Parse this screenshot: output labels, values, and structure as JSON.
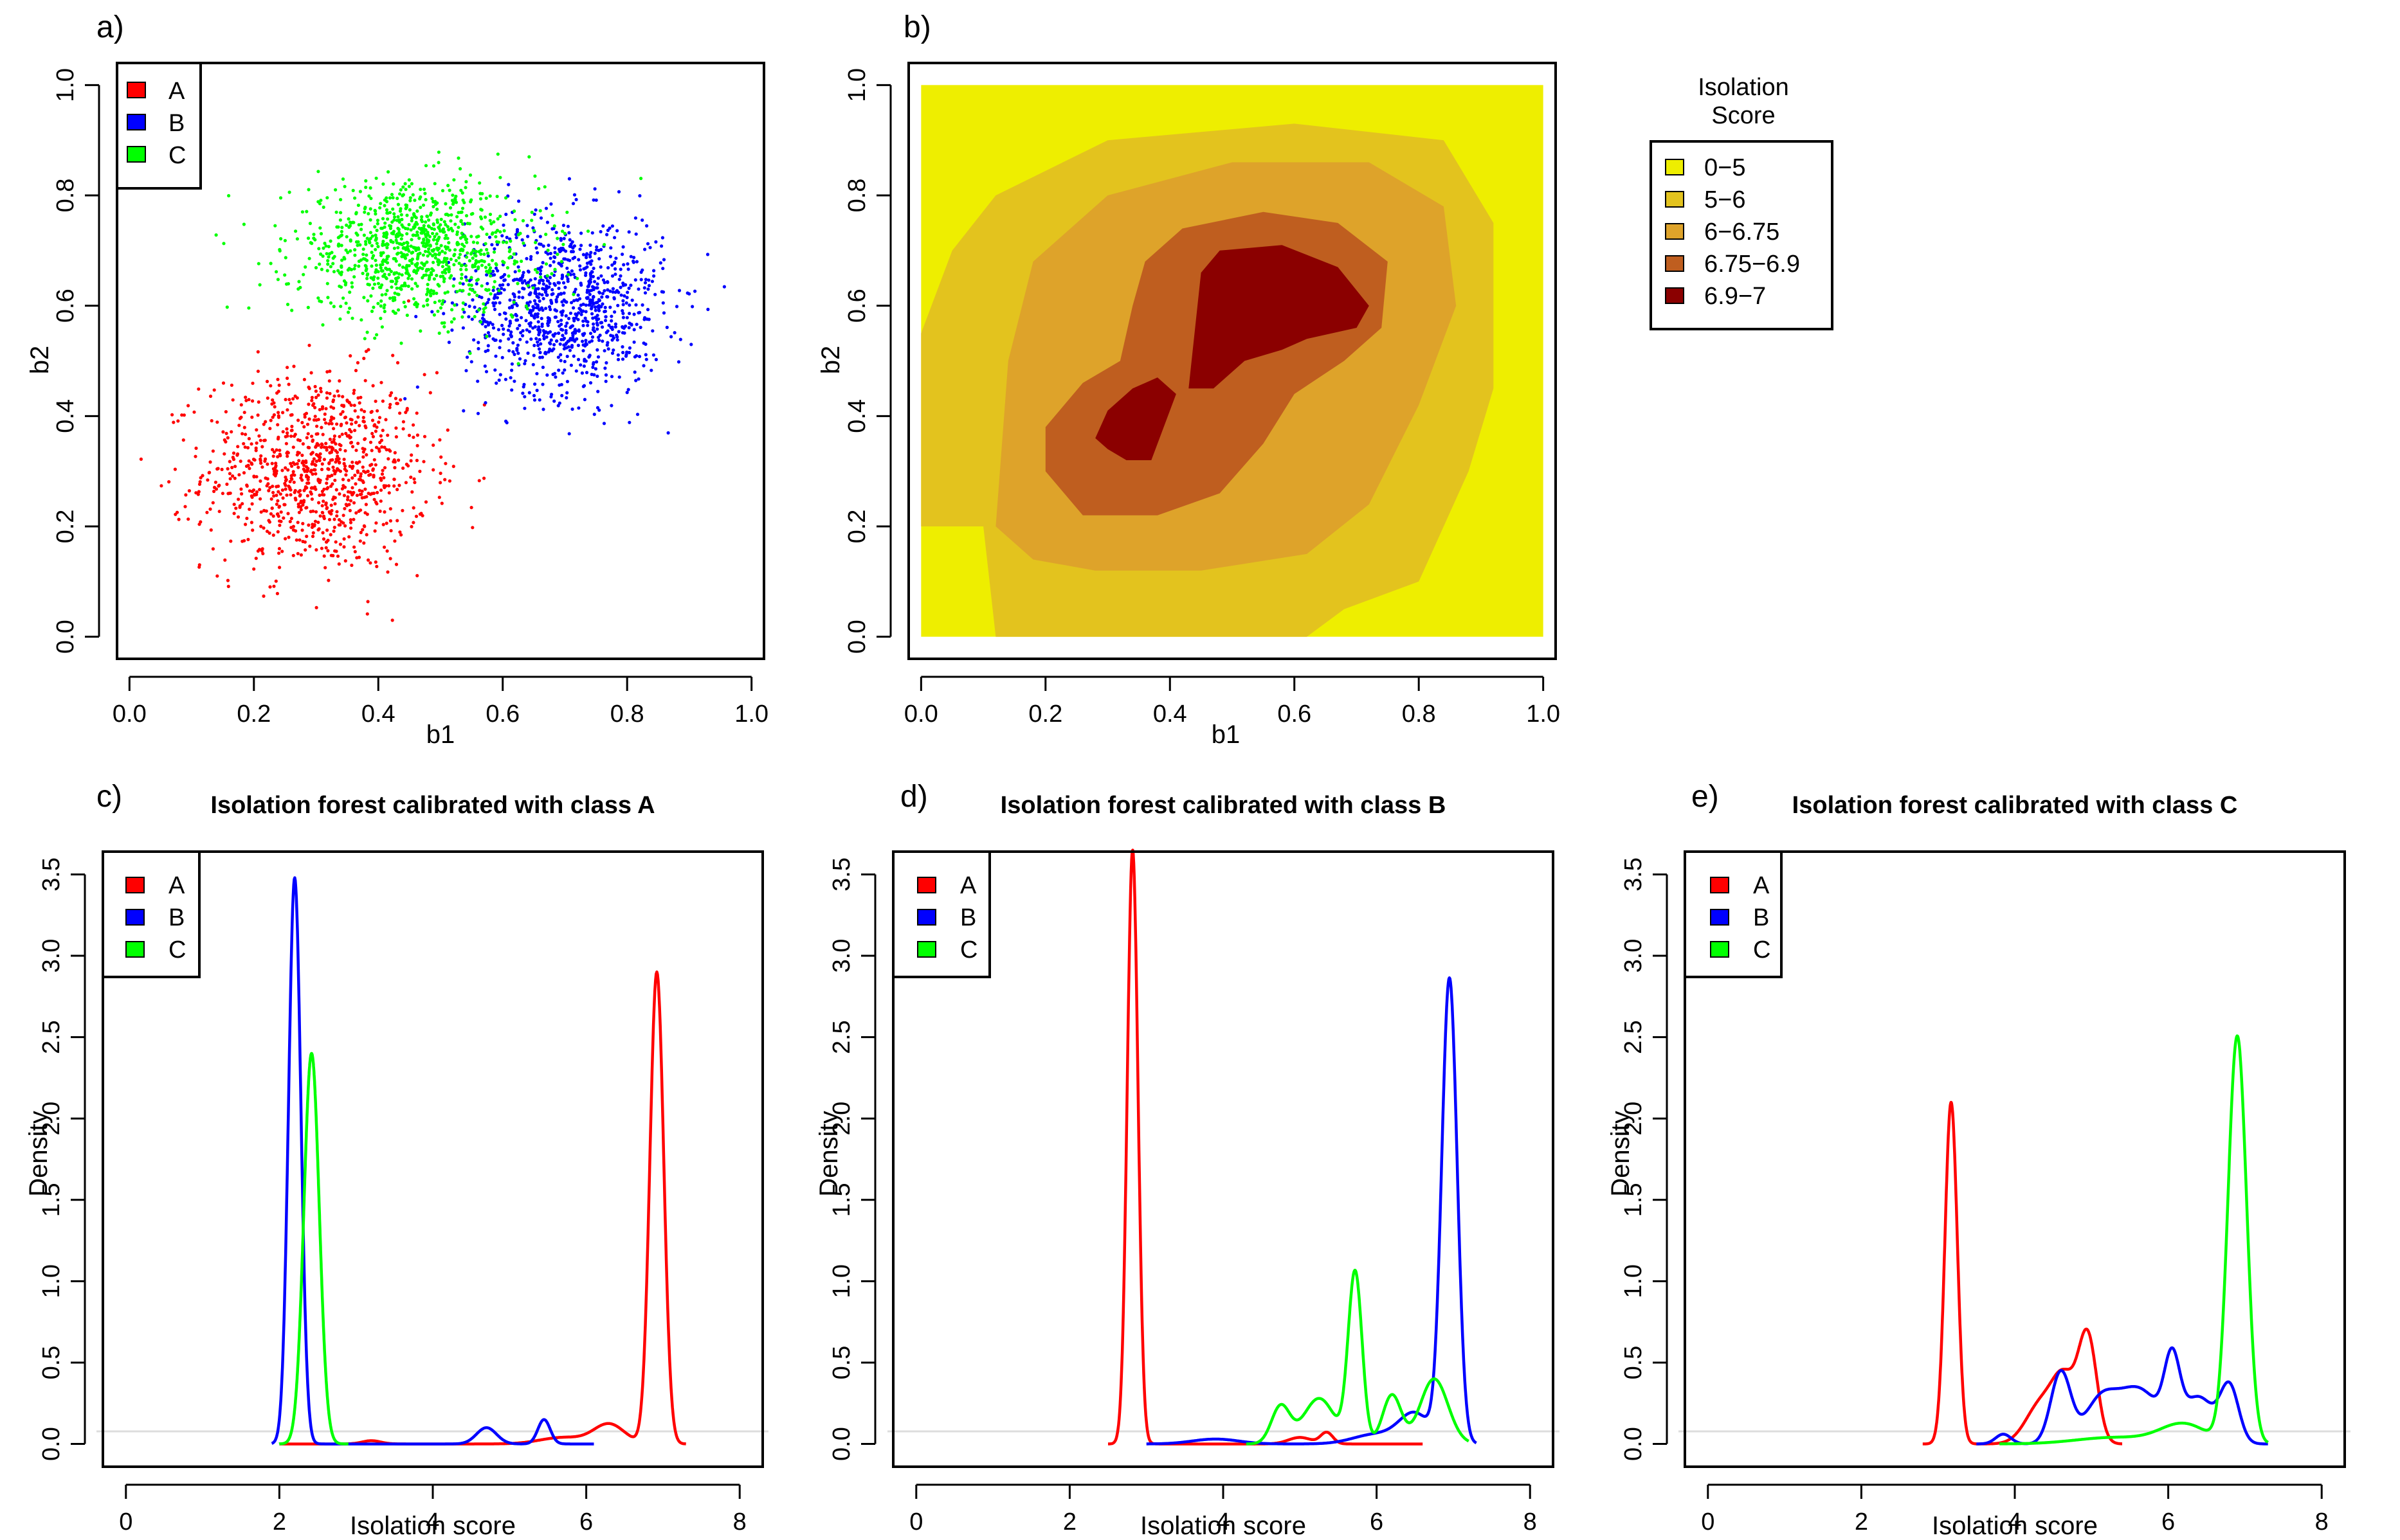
{
  "chart_data": [
    {
      "panel": "a)",
      "type": "scatter",
      "title": "",
      "xlabel": "b1",
      "ylabel": "b2",
      "xlim": [
        -0.02,
        1.02
      ],
      "ylim": [
        -0.04,
        1.04
      ],
      "xticks": [
        "0.0",
        "0.2",
        "0.4",
        "0.6",
        "0.8",
        "1.0"
      ],
      "yticks": [
        "0.0",
        "0.2",
        "0.4",
        "0.6",
        "0.8",
        "1.0"
      ],
      "legend": {
        "position": "top-left",
        "entries": [
          "A",
          "B",
          "C"
        ]
      },
      "series": [
        {
          "name": "A",
          "color": "#ff0000",
          "n": 1000,
          "center": [
            0.3,
            0.3
          ],
          "spread": [
            0.09,
            0.09
          ]
        },
        {
          "name": "B",
          "color": "#0000ff",
          "n": 1000,
          "center": [
            0.7,
            0.6
          ],
          "spread": [
            0.08,
            0.08
          ]
        },
        {
          "name": "C",
          "color": "#00ff00",
          "n": 1000,
          "center": [
            0.46,
            0.7
          ],
          "spread": [
            0.1,
            0.06
          ]
        }
      ]
    },
    {
      "panel": "b)",
      "type": "heatmap",
      "title": "",
      "xlabel": "b1",
      "ylabel": "b2",
      "xlim": [
        -0.02,
        1.02
      ],
      "ylim": [
        -0.04,
        1.04
      ],
      "xticks": [
        "0.0",
        "0.2",
        "0.4",
        "0.6",
        "0.8",
        "1.0"
      ],
      "yticks": [
        "0.0",
        "0.2",
        "0.4",
        "0.6",
        "0.8",
        "1.0"
      ],
      "legend": {
        "title_line1": "Isolation",
        "title_line2": "Score",
        "position": "right",
        "entries": [
          {
            "label": "0−5",
            "color": "#eeee00"
          },
          {
            "label": "5−6",
            "color": "#e3c31e"
          },
          {
            "label": "6−6.75",
            "color": "#dea32a"
          },
          {
            "label": "6.75−6.9",
            "color": "#bf5e1f"
          },
          {
            "label": "6.9−7",
            "color": "#8b0000"
          }
        ]
      },
      "regions": [
        {
          "class": "5−6",
          "polygon": [
            [
              0.0,
              0.55
            ],
            [
              0.05,
              0.7
            ],
            [
              0.12,
              0.8
            ],
            [
              0.3,
              0.9
            ],
            [
              0.6,
              0.93
            ],
            [
              0.84,
              0.9
            ],
            [
              0.92,
              0.75
            ],
            [
              0.92,
              0.45
            ],
            [
              0.88,
              0.3
            ],
            [
              0.8,
              0.1
            ],
            [
              0.68,
              0.05
            ],
            [
              0.62,
              0.0
            ],
            [
              0.12,
              0.0
            ],
            [
              0.1,
              0.2
            ],
            [
              0.0,
              0.2
            ]
          ]
        },
        {
          "class": "6−6.75",
          "polygon": [
            [
              0.12,
              0.2
            ],
            [
              0.14,
              0.5
            ],
            [
              0.18,
              0.68
            ],
            [
              0.3,
              0.8
            ],
            [
              0.5,
              0.86
            ],
            [
              0.72,
              0.86
            ],
            [
              0.84,
              0.78
            ],
            [
              0.86,
              0.6
            ],
            [
              0.8,
              0.42
            ],
            [
              0.72,
              0.24
            ],
            [
              0.62,
              0.15
            ],
            [
              0.45,
              0.12
            ],
            [
              0.28,
              0.12
            ],
            [
              0.18,
              0.14
            ]
          ]
        },
        {
          "class": "6.75−6.9",
          "polygon": [
            [
              0.2,
              0.3
            ],
            [
              0.2,
              0.38
            ],
            [
              0.26,
              0.46
            ],
            [
              0.32,
              0.5
            ],
            [
              0.34,
              0.6
            ],
            [
              0.36,
              0.68
            ],
            [
              0.42,
              0.74
            ],
            [
              0.55,
              0.77
            ],
            [
              0.67,
              0.75
            ],
            [
              0.75,
              0.68
            ],
            [
              0.74,
              0.56
            ],
            [
              0.68,
              0.5
            ],
            [
              0.6,
              0.44
            ],
            [
              0.55,
              0.35
            ],
            [
              0.48,
              0.26
            ],
            [
              0.38,
              0.22
            ],
            [
              0.26,
              0.22
            ]
          ]
        },
        {
          "class": "6.9−7",
          "polygon": [
            [
              0.43,
              0.45
            ],
            [
              0.45,
              0.66
            ],
            [
              0.48,
              0.7
            ],
            [
              0.58,
              0.71
            ],
            [
              0.67,
              0.67
            ],
            [
              0.72,
              0.6
            ],
            [
              0.7,
              0.56
            ],
            [
              0.62,
              0.54
            ],
            [
              0.58,
              0.52
            ],
            [
              0.52,
              0.5
            ],
            [
              0.47,
              0.45
            ]
          ]
        },
        {
          "class": "6.9−7",
          "polygon": [
            [
              0.28,
              0.36
            ],
            [
              0.3,
              0.41
            ],
            [
              0.34,
              0.45
            ],
            [
              0.38,
              0.47
            ],
            [
              0.41,
              0.44
            ],
            [
              0.39,
              0.38
            ],
            [
              0.37,
              0.32
            ],
            [
              0.33,
              0.32
            ],
            [
              0.3,
              0.34
            ]
          ]
        }
      ]
    },
    {
      "panel": "c)",
      "type": "line",
      "title": "Isolation forest calibrated with class A",
      "xlabel": "Isolation score",
      "ylabel": "Density",
      "xlim": [
        -0.3,
        8.3
      ],
      "ylim": [
        -0.14,
        3.64
      ],
      "xticks": [
        "0",
        "2",
        "4",
        "6",
        "8"
      ],
      "yticks": [
        "0.0",
        "0.5",
        "1.0",
        "1.5",
        "2.0",
        "2.5",
        "3.0",
        "3.5"
      ],
      "legend": {
        "position": "top-left",
        "entries": [
          "A",
          "B",
          "C"
        ]
      },
      "series": [
        {
          "name": "A",
          "color": "#ff0000",
          "range": [
            2.0,
            7.3
          ],
          "peaks": [
            [
              3.2,
              0.02,
              0.12
            ],
            [
              5.7,
              0.04,
              0.3
            ],
            [
              6.3,
              0.12,
              0.2
            ],
            [
              6.92,
              2.9,
              0.09
            ]
          ]
        },
        {
          "name": "B",
          "color": "#0000ff",
          "range": [
            1.9,
            6.1
          ],
          "peaks": [
            [
              2.2,
              3.48,
              0.08
            ],
            [
              4.7,
              0.1,
              0.13
            ],
            [
              5.45,
              0.15,
              0.08
            ]
          ]
        },
        {
          "name": "C",
          "color": "#00ff00",
          "range": [
            2.0,
            2.9
          ],
          "peaks": [
            [
              2.42,
              2.4,
              0.1
            ]
          ]
        }
      ]
    },
    {
      "panel": "d)",
      "type": "line",
      "title": "Isolation forest calibrated with class B",
      "xlabel": "Isolation score",
      "ylabel": "Density",
      "xlim": [
        -0.3,
        8.3
      ],
      "ylim": [
        -0.14,
        3.64
      ],
      "xticks": [
        "0",
        "2",
        "4",
        "6",
        "8"
      ],
      "yticks": [
        "0.0",
        "0.5",
        "1.0",
        "1.5",
        "2.0",
        "2.5",
        "3.0",
        "3.5"
      ],
      "legend": {
        "position": "top-left",
        "entries": [
          "A",
          "B",
          "C"
        ]
      },
      "series": [
        {
          "name": "A",
          "color": "#ff0000",
          "range": [
            2.5,
            6.6
          ],
          "peaks": [
            [
              2.82,
              3.65,
              0.07
            ],
            [
              5.0,
              0.04,
              0.15
            ],
            [
              5.35,
              0.07,
              0.08
            ]
          ]
        },
        {
          "name": "B",
          "color": "#0000ff",
          "range": [
            3.0,
            7.3
          ],
          "peaks": [
            [
              3.9,
              0.03,
              0.3
            ],
            [
              6.0,
              0.06,
              0.3
            ],
            [
              6.5,
              0.18,
              0.2
            ],
            [
              6.95,
              2.85,
              0.1
            ]
          ]
        },
        {
          "name": "C",
          "color": "#00ff00",
          "range": [
            4.3,
            7.2
          ],
          "peaks": [
            [
              4.75,
              0.23,
              0.12
            ],
            [
              5.25,
              0.28,
              0.2
            ],
            [
              5.72,
              1.05,
              0.09
            ],
            [
              6.2,
              0.3,
              0.12
            ],
            [
              6.75,
              0.4,
              0.18
            ]
          ]
        }
      ]
    },
    {
      "panel": "e)",
      "type": "line",
      "title": "Isolation forest calibrated with class C",
      "xlabel": "Isolation score",
      "ylabel": "Density",
      "xlim": [
        -0.3,
        8.3
      ],
      "ylim": [
        -0.14,
        3.64
      ],
      "xticks": [
        "0",
        "2",
        "4",
        "6",
        "8"
      ],
      "yticks": [
        "0.0",
        "0.5",
        "1.0",
        "1.5",
        "2.0",
        "2.5",
        "3.0",
        "3.5"
      ],
      "legend": {
        "position": "top-left",
        "entries": [
          "A",
          "B",
          "C"
        ]
      },
      "series": [
        {
          "name": "A",
          "color": "#ff0000",
          "range": [
            2.8,
            5.4
          ],
          "peaks": [
            [
              3.17,
              2.1,
              0.08
            ],
            [
              4.35,
              0.25,
              0.2
            ],
            [
              4.65,
              0.35,
              0.15
            ],
            [
              4.95,
              0.65,
              0.12
            ]
          ]
        },
        {
          "name": "B",
          "color": "#0000ff",
          "range": [
            3.5,
            7.3
          ],
          "peaks": [
            [
              3.85,
              0.06,
              0.1
            ],
            [
              4.6,
              0.44,
              0.13
            ],
            [
              5.1,
              0.22,
              0.2
            ],
            [
              5.6,
              0.34,
              0.3
            ],
            [
              6.05,
              0.42,
              0.1
            ],
            [
              6.4,
              0.28,
              0.2
            ],
            [
              6.8,
              0.34,
              0.12
            ]
          ]
        },
        {
          "name": "C",
          "color": "#00ff00",
          "range": [
            3.8,
            7.3
          ],
          "peaks": [
            [
              5.3,
              0.04,
              0.5
            ],
            [
              6.2,
              0.12,
              0.3
            ],
            [
              6.9,
              2.5,
              0.12
            ]
          ]
        }
      ]
    }
  ]
}
